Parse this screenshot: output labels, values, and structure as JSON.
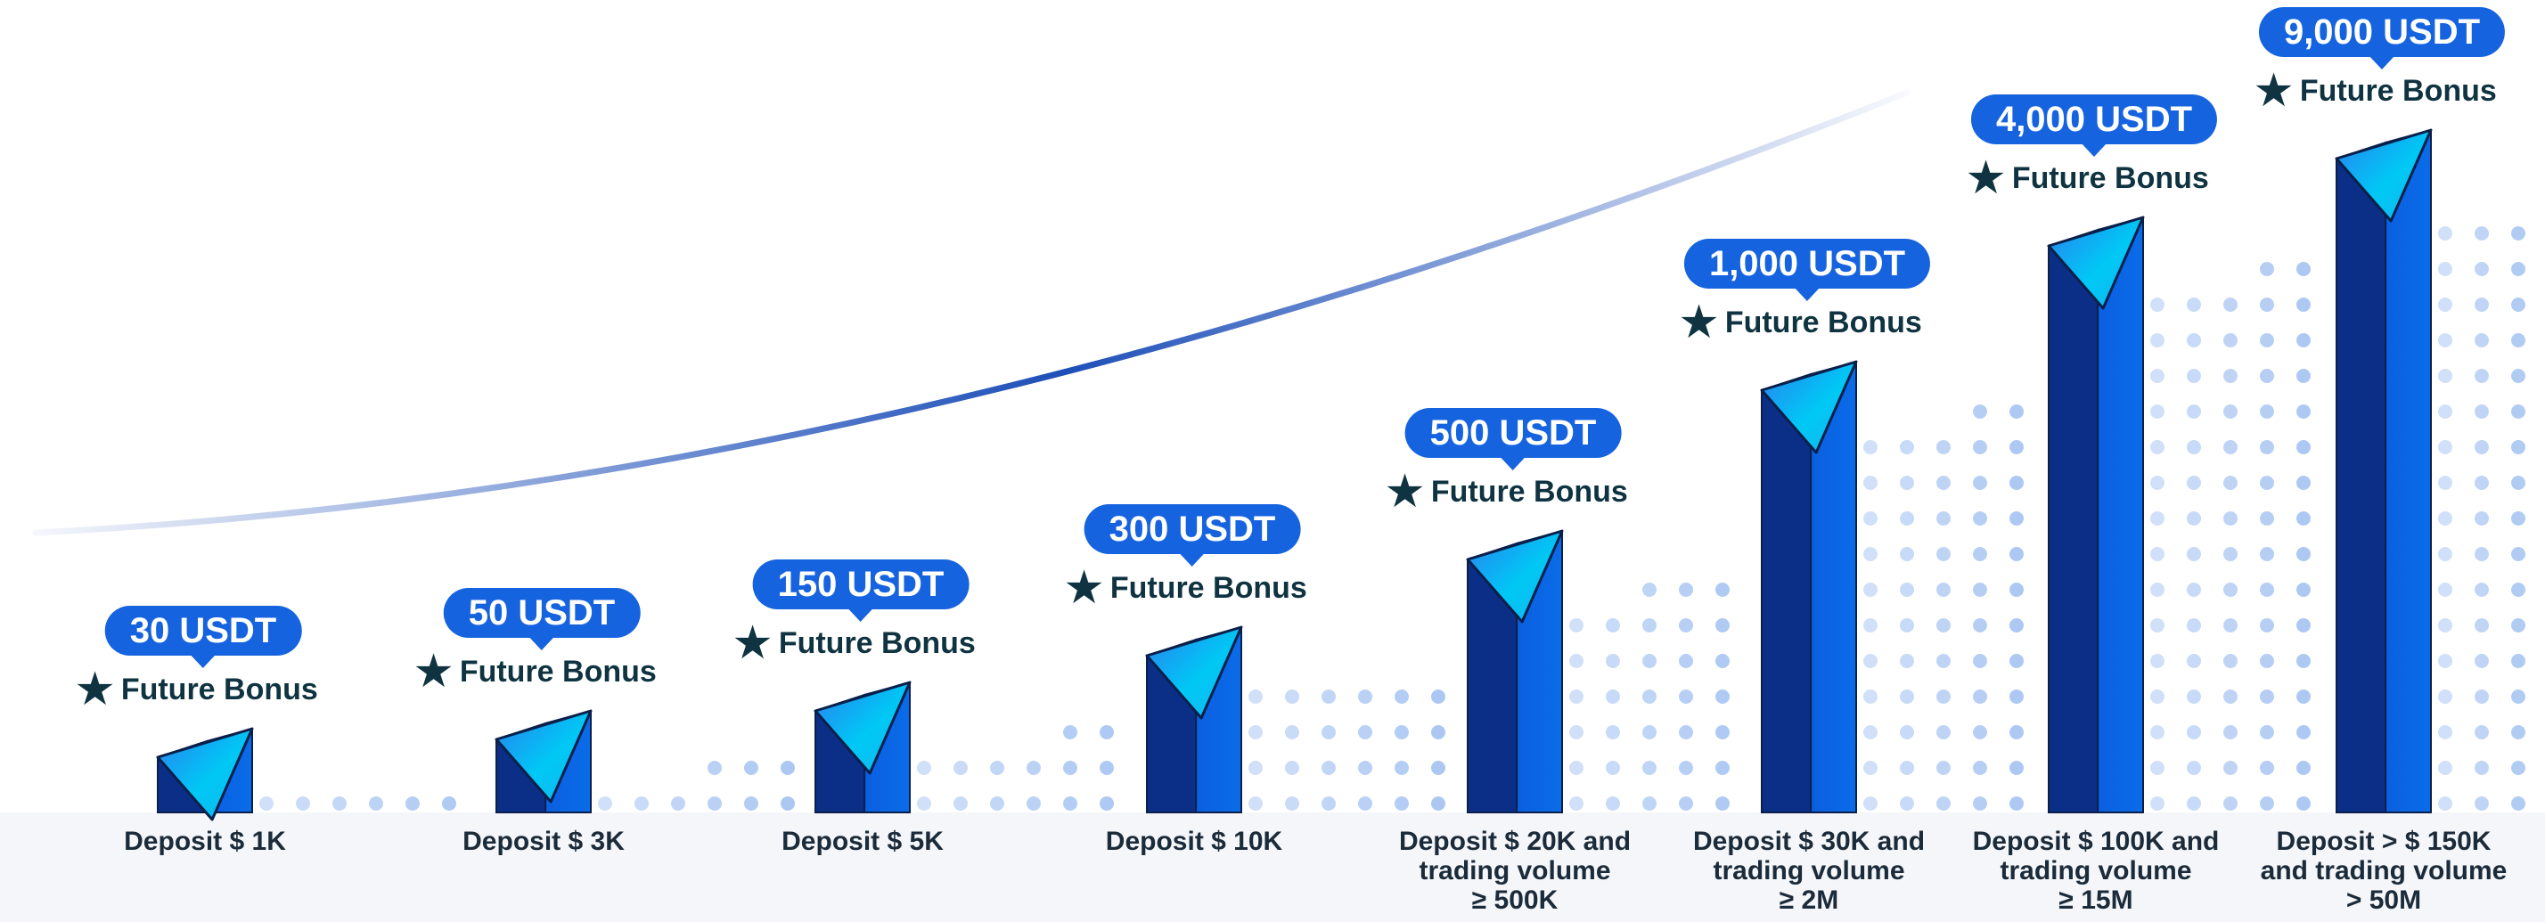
{
  "chart_data": {
    "type": "bar",
    "categories": [
      "Deposit $ 1K",
      "Deposit  $ 3K",
      "Deposit  $ 5K",
      "Deposit  $ 10K",
      "Deposit  $ 20K and\ntrading volume\n≥ 500K",
      "Deposit $ 30K and\ntrading volume\n≥ 2M",
      "Deposit $ 100K and\ntrading volume\n≥ 15M",
      "Deposit > $ 150K\nand trading volume\n> 50M"
    ],
    "series": [
      {
        "values": [
          30,
          50,
          150,
          300,
          500,
          1000,
          4000,
          9000
        ],
        "labels": [
          "30 USDT",
          "50 USDT",
          "150 USDT",
          "300 USDT",
          "500 USDT",
          "1,000 USDT",
          "4,000 USDT",
          "9,000 USDT"
        ]
      }
    ],
    "tier_note": "Future Bonus",
    "scale": "ordinal tiers (bar heights increase per tier, not proportional)",
    "colors": {
      "bar_front": "#0a63dd",
      "bar_side": "#0b2f86",
      "bar_cap_start": "#00c8f5",
      "bar_cap_end": "#1a6be8",
      "bubble": "#1663e0",
      "star_text": "#0f3340",
      "dots": "#a9c6f2",
      "curve": "#1d4fb8",
      "base_band": "#f4f6f9"
    }
  }
}
